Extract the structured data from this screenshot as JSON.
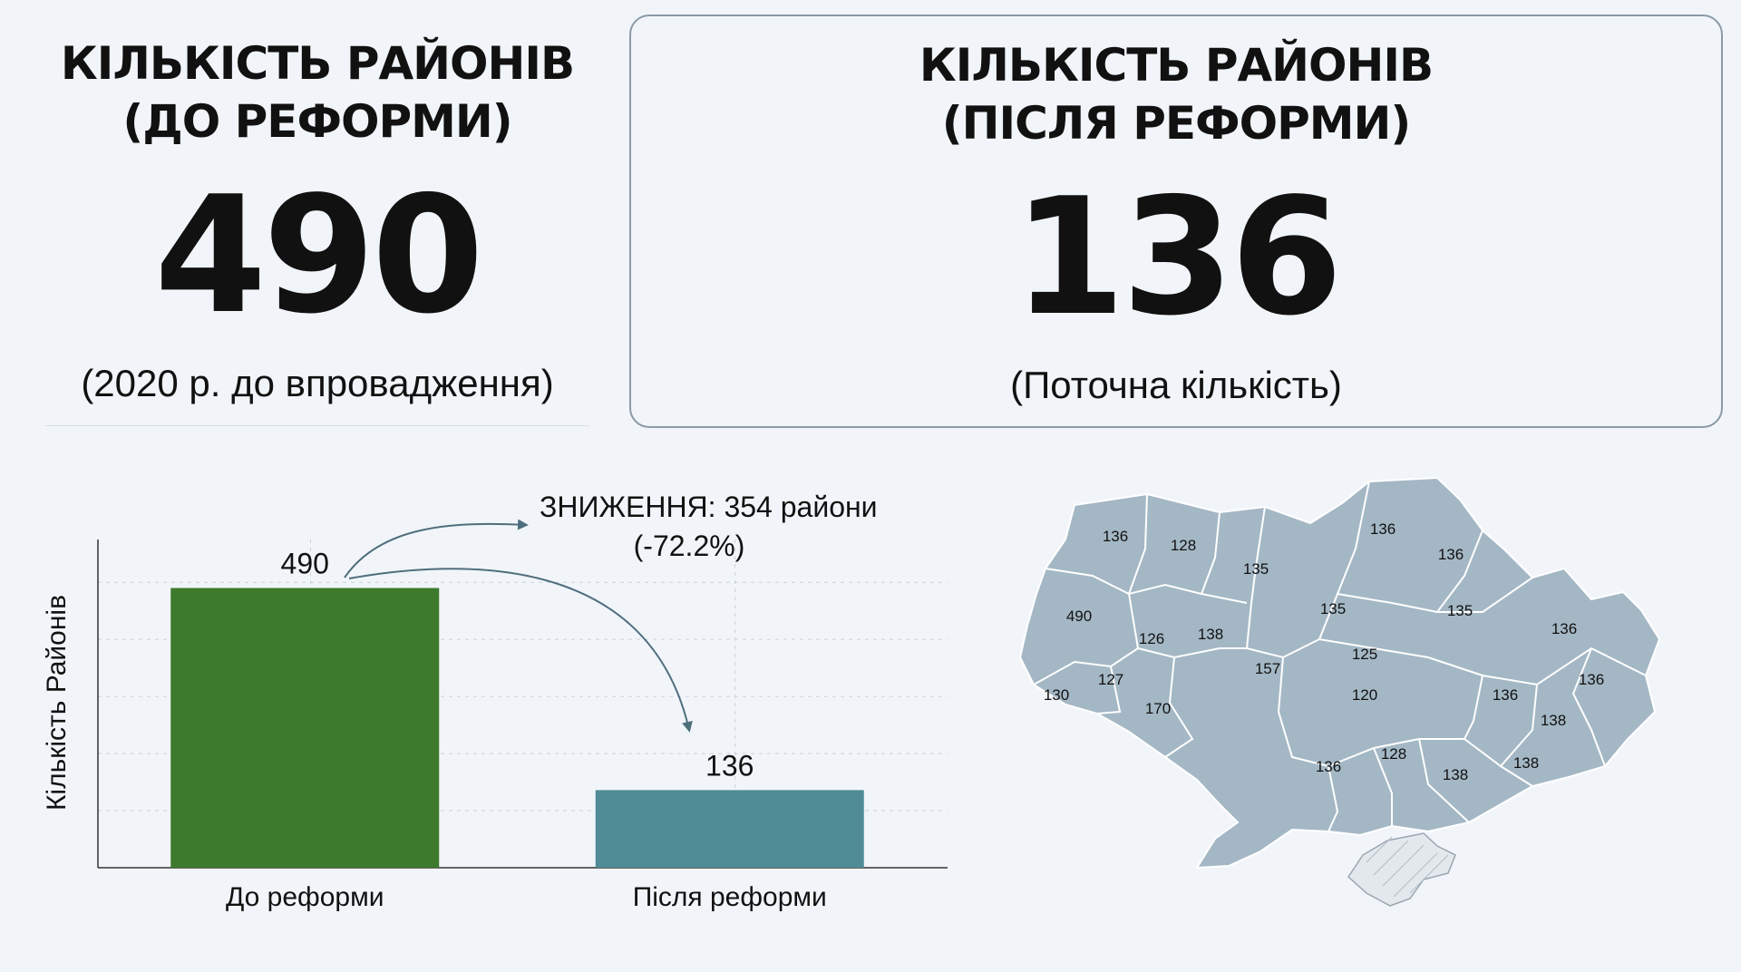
{
  "stats": {
    "before": {
      "title_line1": "КІЛЬКІСТЬ РАЙОНІВ",
      "title_line2": "(ДО РЕФОРМИ)",
      "value": "490",
      "note": "(2020 р. до впровадження)"
    },
    "after": {
      "title_line1": "КІЛЬКІСТЬ РАЙОНІВ",
      "title_line2": "(ПІСЛЯ РЕФОРМИ)",
      "value": "136",
      "note": "(Поточна кількість)"
    }
  },
  "chart_data": {
    "type": "bar",
    "categories": [
      "До реформи",
      "Після реформи"
    ],
    "values": [
      490,
      136
    ],
    "data_labels": [
      "490",
      "136"
    ],
    "ylabel": "Кількість Районів",
    "xlabel": "",
    "ylim": [
      0,
      575
    ],
    "grid": true,
    "bar_colors": [
      "#3d7a2c",
      "#4f8c96"
    ],
    "annotation": {
      "line1": "ЗНИЖЕННЯ: 354 райони",
      "line2": "(-72.2%)"
    }
  },
  "map": {
    "fill_color": "#a4b7c5",
    "border_color": "#ffffff",
    "crimea_fill": "#e3e8ec",
    "labels": [
      "136",
      "128",
      "135",
      "136",
      "136",
      "490",
      "126",
      "138",
      "135",
      "135",
      "136",
      "127",
      "157",
      "125",
      "136",
      "130",
      "170",
      "120",
      "136",
      "138",
      "136",
      "128",
      "138",
      "138"
    ]
  }
}
